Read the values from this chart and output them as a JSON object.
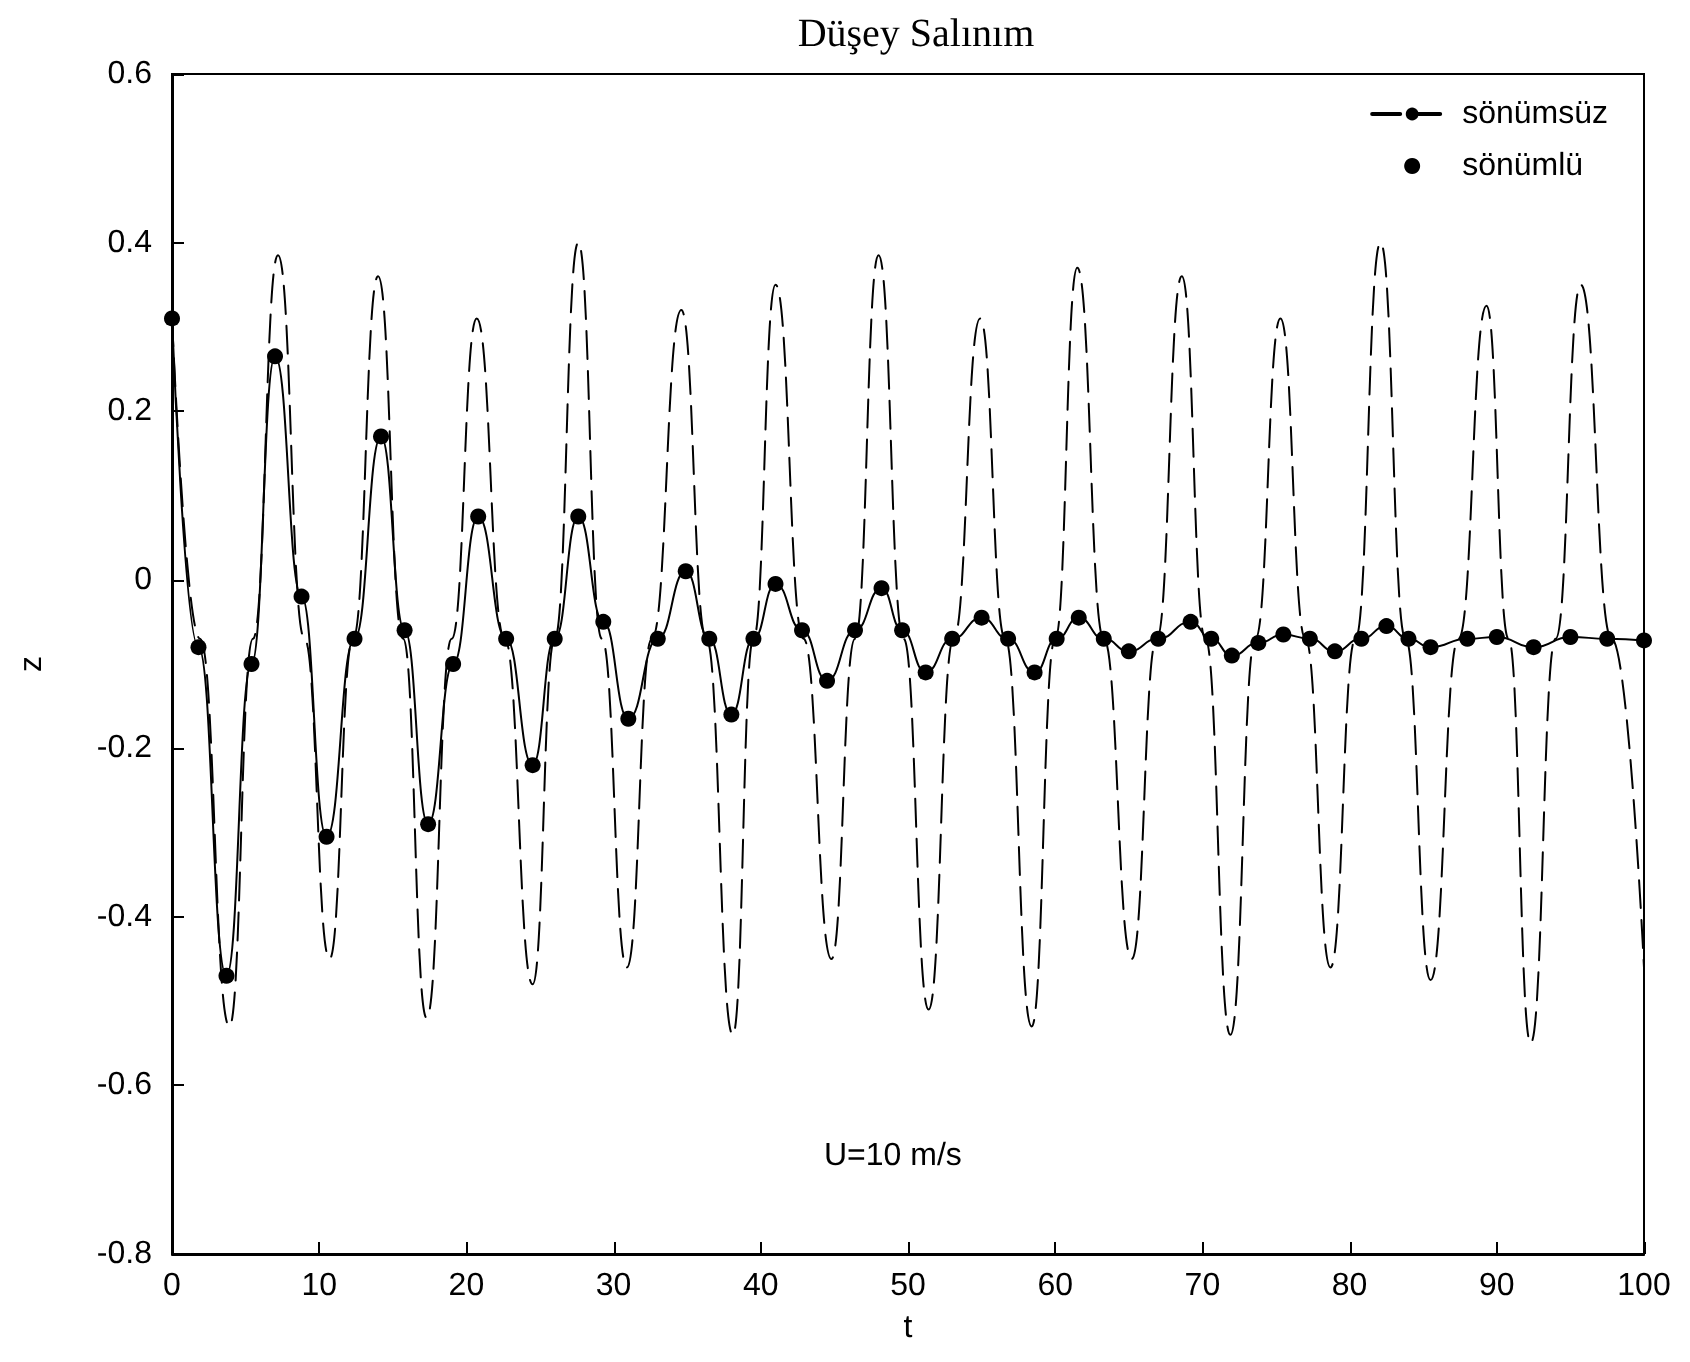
{
  "chart_data": {
    "type": "line",
    "title": "Düşey Salınım",
    "xlabel": "t",
    "ylabel": "z",
    "annotations": [
      "U=10 m/s"
    ],
    "xlim": [
      0,
      100
    ],
    "xticks": [
      0,
      10,
      20,
      30,
      40,
      50,
      60,
      70,
      80,
      90,
      100
    ],
    "ylim": [
      -0.8,
      0.6
    ],
    "yticks": [
      -0.8,
      -0.6,
      -0.4,
      -0.2,
      0,
      0.2,
      0.4,
      0.6
    ],
    "legend": "top right",
    "series": [
      {
        "name": "sönümsüz",
        "color": "#000000",
        "line_style": "dashed",
        "marker": "none",
        "x": [
          0,
          1.9,
          3.9,
          5.5,
          7.2,
          9.0,
          10.7,
          12.3,
          14.0,
          15.7,
          17.3,
          19.0,
          20.7,
          22.6,
          24.5,
          26.0,
          27.6,
          29.2,
          30.9,
          32.6,
          34.6,
          36.3,
          38.1,
          39.5,
          41.0,
          42.9,
          44.8,
          46.4,
          48.0,
          49.7,
          51.4,
          53.1,
          54.9,
          56.6,
          58.4,
          60.0,
          61.5,
          63.3,
          65.2,
          66.9,
          68.6,
          70.2,
          71.9,
          73.6,
          75.3,
          77.0,
          78.7,
          80.4,
          82.1,
          83.8,
          85.5,
          87.4,
          89.3,
          90.8,
          92.3,
          94.0,
          95.7,
          97.8,
          100
        ],
        "values": [
          0.31,
          -0.07,
          -0.53,
          -0.07,
          0.385,
          -0.07,
          -0.45,
          -0.07,
          0.36,
          -0.07,
          -0.52,
          -0.07,
          0.31,
          -0.07,
          -0.48,
          -0.07,
          0.4,
          -0.07,
          -0.46,
          -0.07,
          0.32,
          -0.07,
          -0.54,
          -0.07,
          0.35,
          -0.07,
          -0.45,
          -0.07,
          0.385,
          -0.07,
          -0.51,
          -0.07,
          0.31,
          -0.07,
          -0.53,
          -0.07,
          0.37,
          -0.07,
          -0.45,
          -0.07,
          0.36,
          -0.07,
          -0.54,
          -0.07,
          0.31,
          -0.07,
          -0.46,
          -0.07,
          0.4,
          -0.07,
          -0.475,
          -0.07,
          0.325,
          -0.07,
          -0.55,
          -0.07,
          0.35,
          -0.07,
          -0.46
        ]
      },
      {
        "name": "sönümlü",
        "color": "#000000",
        "line_style": "solid",
        "marker": "circle",
        "x": [
          0,
          1.8,
          3.7,
          5.4,
          7.0,
          8.8,
          10.5,
          12.4,
          14.2,
          15.8,
          17.4,
          19.1,
          20.8,
          22.7,
          24.5,
          26.0,
          27.6,
          29.3,
          31.0,
          33.0,
          34.9,
          36.5,
          38.0,
          39.5,
          41.0,
          42.8,
          44.5,
          46.4,
          48.2,
          49.6,
          51.2,
          53.0,
          55.0,
          56.8,
          58.6,
          60.1,
          61.6,
          63.3,
          65.0,
          67.0,
          69.2,
          70.6,
          72.0,
          73.8,
          75.5,
          77.3,
          79.0,
          80.8,
          82.5,
          84.0,
          85.5,
          88.0,
          90.0,
          92.5,
          95.0,
          97.5,
          100
        ],
        "values": [
          0.31,
          -0.08,
          -0.47,
          -0.1,
          0.265,
          -0.02,
          -0.305,
          -0.07,
          0.17,
          -0.06,
          -0.29,
          -0.1,
          0.075,
          -0.07,
          -0.22,
          -0.07,
          0.075,
          -0.05,
          -0.165,
          -0.07,
          0.01,
          -0.07,
          -0.16,
          -0.07,
          -0.005,
          -0.06,
          -0.12,
          -0.06,
          -0.01,
          -0.06,
          -0.11,
          -0.07,
          -0.045,
          -0.07,
          -0.11,
          -0.07,
          -0.045,
          -0.07,
          -0.085,
          -0.07,
          -0.05,
          -0.07,
          -0.09,
          -0.075,
          -0.065,
          -0.07,
          -0.085,
          -0.07,
          -0.055,
          -0.07,
          -0.08,
          -0.07,
          -0.068,
          -0.08,
          -0.068,
          -0.07,
          -0.072
        ]
      }
    ]
  }
}
